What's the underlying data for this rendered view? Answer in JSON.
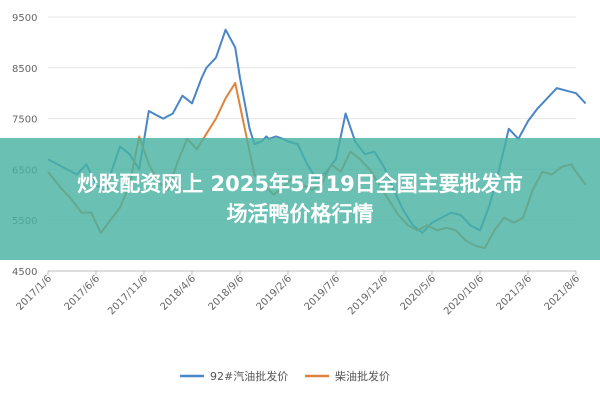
{
  "overlay": {
    "line1": "炒股配资网上 2025年5月19日全国主要批发市",
    "line2": "场活鸭价格行情"
  },
  "colors": {
    "gasoline": "#4a86c5",
    "diesel": "#e0823a",
    "grid": "#e6e6e6",
    "axis": "#bbbbbb",
    "overlay": "#48b2a2"
  },
  "chart_data": {
    "type": "line",
    "title": "",
    "xlabel": "",
    "ylabel": "",
    "ylim": [
      4500,
      9500
    ],
    "y_ticks": [
      4500,
      5500,
      6500,
      7500,
      8500,
      9500
    ],
    "grid": "horizontal",
    "legend_position": "bottom",
    "x_ticks": [
      "2017/1/6",
      "2017/6/6",
      "2017/11/6",
      "2018/4/6",
      "2018/9/6",
      "2019/2/6",
      "2019/7/6",
      "2019/12/6",
      "2020/5/6",
      "2020/10/6",
      "2021/3/6",
      "2021/8/6"
    ],
    "series": [
      {
        "name": "92#汽油批发价",
        "color": "#4a86c5",
        "x": [
          0,
          0.3,
          0.6,
          0.8,
          1.0,
          1.2,
          1.3,
          1.5,
          1.7,
          1.9,
          2.1,
          2.3,
          2.4,
          2.6,
          2.8,
          3.0,
          3.2,
          3.3,
          3.5,
          3.7,
          3.9,
          4.0,
          4.2,
          4.3,
          4.45,
          4.55,
          4.6,
          4.75,
          4.9,
          5.0,
          5.2,
          5.4,
          5.6,
          5.8,
          6.0,
          6.2,
          6.4,
          6.6,
          6.8,
          6.9,
          7.0,
          7.2,
          7.4,
          7.6,
          7.8,
          8.0,
          8.2,
          8.4,
          8.6,
          8.8,
          9.0,
          9.2,
          9.4,
          9.6,
          9.8,
          10.0,
          10.2,
          10.4,
          10.6,
          10.8,
          11.0,
          11.1,
          11.2
        ],
        "values": [
          6700,
          6550,
          6400,
          6600,
          6200,
          6050,
          6400,
          6950,
          6800,
          6500,
          7650,
          7550,
          7500,
          7600,
          7950,
          7800,
          8300,
          8500,
          8700,
          9250,
          8900,
          8300,
          7300,
          7000,
          7050,
          7150,
          7100,
          7150,
          7100,
          7050,
          7000,
          6600,
          6300,
          6450,
          6700,
          7600,
          7050,
          6800,
          6850,
          6700,
          6550,
          6100,
          5700,
          5400,
          5250,
          5450,
          5550,
          5650,
          5600,
          5400,
          5300,
          5800,
          6500,
          7300,
          7100,
          7450,
          7700,
          7900,
          8100,
          8050,
          8000,
          7900,
          7800
        ]
      },
      {
        "name": "柴油批发价",
        "color": "#e0823a",
        "x": [
          0,
          0.3,
          0.5,
          0.7,
          0.9,
          1.1,
          1.3,
          1.5,
          1.7,
          1.9,
          2.1,
          2.3,
          2.5,
          2.7,
          2.9,
          3.1,
          3.3,
          3.5,
          3.7,
          3.9,
          4.1,
          4.3,
          4.5,
          4.7,
          4.9,
          5.1,
          5.3,
          5.5,
          5.7,
          5.9,
          6.1,
          6.3,
          6.5,
          6.7,
          6.9,
          7.1,
          7.3,
          7.5,
          7.7,
          7.9,
          8.1,
          8.3,
          8.5,
          8.7,
          8.9,
          9.1,
          9.3,
          9.5,
          9.7,
          9.9,
          10.1,
          10.3,
          10.5,
          10.7,
          10.9,
          11.0,
          11.2
        ],
        "values": [
          6450,
          6100,
          5900,
          5650,
          5650,
          5250,
          5500,
          5750,
          6200,
          7150,
          6600,
          6250,
          6100,
          6650,
          7100,
          6900,
          7200,
          7500,
          7900,
          8200,
          7300,
          6400,
          6200,
          6000,
          6150,
          6350,
          6200,
          6100,
          6200,
          6600,
          6450,
          6850,
          6700,
          6500,
          6200,
          5900,
          5600,
          5400,
          5300,
          5400,
          5300,
          5350,
          5300,
          5100,
          5000,
          4950,
          5300,
          5550,
          5450,
          5550,
          6100,
          6450,
          6400,
          6550,
          6600,
          6450,
          6200
        ]
      }
    ]
  }
}
